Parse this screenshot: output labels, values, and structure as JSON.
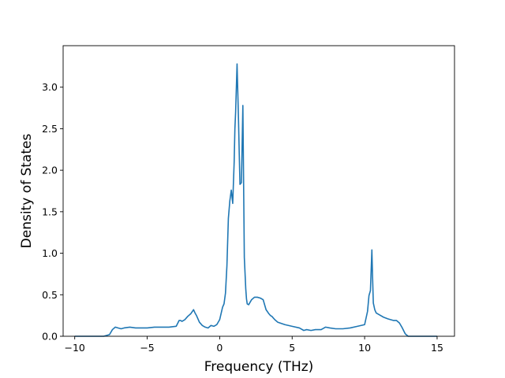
{
  "chart_data": {
    "type": "line",
    "title": "",
    "xlabel": "Frequency (THz)",
    "ylabel": "Density of States",
    "xlim": [
      -10.8,
      16.2
    ],
    "ylim": [
      0,
      3.5
    ],
    "xticks": [
      -10,
      -5,
      0,
      5,
      10,
      15
    ],
    "xtick_labels": [
      "−10",
      "−5",
      "0",
      "5",
      "10",
      "15"
    ],
    "yticks": [
      0,
      0.5,
      1,
      1.5,
      2,
      2.5,
      3
    ],
    "ytick_labels": [
      "0.0",
      "0.5",
      "1.0",
      "1.5",
      "2.0",
      "2.5",
      "3.0"
    ],
    "grid": false,
    "legend": "none",
    "series": [
      {
        "color": "#1f77b4",
        "x": [
          -10,
          -8,
          -7.6,
          -7.4,
          -7.2,
          -7.0,
          -6.8,
          -6.6,
          -6.2,
          -5.8,
          -5.4,
          -5,
          -4.5,
          -4,
          -3.5,
          -3,
          -2.8,
          -2.7,
          -2.6,
          -2.4,
          -2.2,
          -2.0,
          -1.8,
          -1.7,
          -1.6,
          -1.4,
          -1.2,
          -1.0,
          -0.8,
          -0.6,
          -0.4,
          -0.3,
          -0.2,
          0,
          0.2,
          0.3,
          0.4,
          0.5,
          0.6,
          0.7,
          0.8,
          0.9,
          1.0,
          1.05,
          1.1,
          1.2,
          1.3,
          1.35,
          1.4,
          1.5,
          1.6,
          1.7,
          1.8,
          1.85,
          1.9,
          2.0,
          2.2,
          2.4,
          2.6,
          2.8,
          3.0,
          3.2,
          3.4,
          3.5,
          3.6,
          3.8,
          4.0,
          4.5,
          5.0,
          5.5,
          5.8,
          6.0,
          6.3,
          6.6,
          7.0,
          7.3,
          7.6,
          8.0,
          8.5,
          9.0,
          9.5,
          10.0,
          10.2,
          10.3,
          10.4,
          10.5,
          10.55,
          10.6,
          10.7,
          10.8,
          11.0,
          11.3,
          11.6,
          12.0,
          12.2,
          12.4,
          12.6,
          12.8,
          13.0,
          13.2,
          15.0
        ],
        "y": [
          0,
          0,
          0.02,
          0.08,
          0.11,
          0.1,
          0.09,
          0.1,
          0.11,
          0.1,
          0.1,
          0.1,
          0.11,
          0.11,
          0.11,
          0.12,
          0.19,
          0.19,
          0.18,
          0.2,
          0.24,
          0.27,
          0.32,
          0.28,
          0.25,
          0.17,
          0.13,
          0.11,
          0.1,
          0.13,
          0.12,
          0.13,
          0.14,
          0.2,
          0.35,
          0.39,
          0.52,
          0.85,
          1.42,
          1.63,
          1.76,
          1.6,
          2.1,
          2.5,
          2.7,
          3.28,
          2.6,
          2.2,
          1.83,
          1.85,
          2.78,
          0.95,
          0.57,
          0.45,
          0.39,
          0.38,
          0.44,
          0.47,
          0.47,
          0.46,
          0.44,
          0.32,
          0.27,
          0.25,
          0.24,
          0.2,
          0.17,
          0.14,
          0.12,
          0.1,
          0.07,
          0.08,
          0.07,
          0.08,
          0.08,
          0.11,
          0.1,
          0.09,
          0.09,
          0.1,
          0.12,
          0.14,
          0.3,
          0.49,
          0.55,
          1.04,
          0.7,
          0.4,
          0.32,
          0.28,
          0.26,
          0.23,
          0.21,
          0.19,
          0.19,
          0.16,
          0.1,
          0.03,
          0.0,
          0.0,
          0.0
        ]
      }
    ]
  }
}
